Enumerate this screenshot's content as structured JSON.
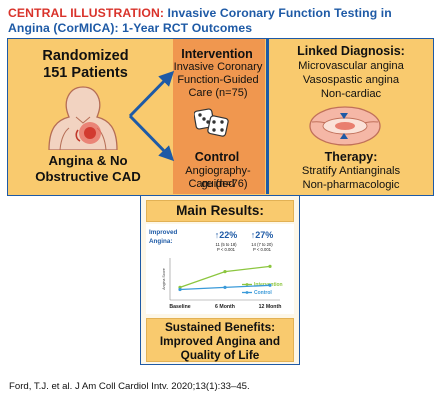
{
  "title": {
    "lead": "CENTRAL ILLUSTRATION:",
    "rest": "Invasive Coronary Function Testing in Angina (CorMICA): 1-Year RCT Outcomes"
  },
  "population": {
    "line1": "Randomized",
    "line2": "151 Patients",
    "condition_line1": "Angina & No",
    "condition_line2": "Obstructive CAD"
  },
  "intervention": {
    "heading": "Intervention",
    "lines": [
      "Invasive Coronary",
      "Function-Guided",
      "Care (n=75)"
    ]
  },
  "control": {
    "heading": "Control",
    "lines": [
      "Angiography-guided",
      "Care (n=76)"
    ]
  },
  "linked_diagnosis": {
    "heading": "Linked Diagnosis:",
    "items": [
      "Microvascular angina",
      "Vasospastic angina",
      "Non-cardiac"
    ]
  },
  "therapy": {
    "heading": "Therapy:",
    "items": [
      "Stratify Antianginals",
      "Non-pharmacologic"
    ]
  },
  "main_results": {
    "heading": "Main Results:",
    "improved_label_1": "Improved",
    "improved_label_2": "Angina:",
    "effects": [
      {
        "value": "↑22%",
        "ci": "11 (5 to 18)",
        "p": "P < 0.001"
      },
      {
        "value": "↑27%",
        "ci": "14 (7 to 20)",
        "p": "P < 0.001"
      }
    ]
  },
  "chart_data": {
    "type": "line",
    "categories": [
      "Baseline",
      "6 Month",
      "12 Month"
    ],
    "ylabel": "Angina Score",
    "series": [
      {
        "name": "Intervention",
        "color": "#8cc63f",
        "values": [
          52,
          67,
          72
        ]
      },
      {
        "name": "Control",
        "color": "#3a9ad9",
        "values": [
          50,
          52,
          54
        ]
      }
    ],
    "ylim": [
      40,
      80
    ],
    "legend_position": "bottom-right"
  },
  "sustained": {
    "line1": "Sustained Benefits:",
    "line2": "Improved Angina and",
    "line3": "Quality of Life"
  },
  "citation": "Ford, T.J. et al. J Am Coll Cardiol Intv. 2020;13(1):33–45.",
  "colors": {
    "accent_red": "#d9332b",
    "brand_blue": "#1e5aa6",
    "panel_yellow": "#f9ca6e",
    "panel_orange": "#f0974f"
  }
}
